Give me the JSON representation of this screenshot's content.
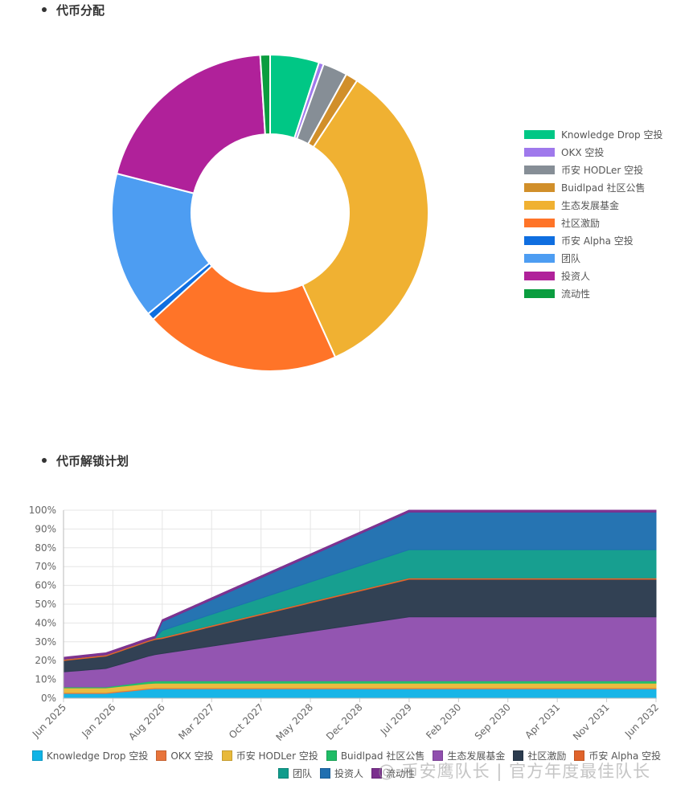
{
  "sections": {
    "distribution_title": "代币分配",
    "unlock_title": "代币解锁计划"
  },
  "watermark": "@ 币安鹰队长 | 官方年度最佳队长",
  "chart_data": [
    {
      "type": "pie",
      "variant": "doughnut",
      "legend_position": "right",
      "labels": [
        "Knowledge Drop 空投",
        "OKX 空投",
        "币安 HODLer 空投",
        "Buidlpad 社区公售",
        "生态发展基金",
        "社区激励",
        "币安 Alpha 空投",
        "团队",
        "投资人",
        "流动性"
      ],
      "values": [
        5,
        0.5,
        2.5,
        1.25,
        34,
        20,
        0.75,
        15,
        20,
        1
      ],
      "colors": [
        "#00c785",
        "#9f79ec",
        "#868e96",
        "#d18f2a",
        "#f0b132",
        "#ff7428",
        "#0f6ee0",
        "#4d9df2",
        "#b0219a",
        "#0a9d3f"
      ]
    },
    {
      "type": "area",
      "stacked": true,
      "legend_position": "bottom",
      "x": [
        "2025-06",
        "2025-07",
        "2025-08",
        "2025-09",
        "2025-10",
        "2025-11",
        "2025-12",
        "2026-01",
        "2026-02",
        "2026-03",
        "2026-04",
        "2026-05",
        "2026-06",
        "2026-07",
        "2026-08",
        "2029-07",
        "2032-06"
      ],
      "x_tick_labels": [
        "Jun 2025",
        "Jan 2026",
        "Aug 2026",
        "Mar 2027",
        "Oct 2027",
        "May 2028",
        "Dec 2028",
        "Jul 2029",
        "Feb 2030",
        "Sep 2030",
        "Apr 2031",
        "Nov 2031",
        "Jun 2032"
      ],
      "y_tick_labels": [
        "0%",
        "10%",
        "20%",
        "30%",
        "40%",
        "50%",
        "60%",
        "70%",
        "80%",
        "90%",
        "100%"
      ],
      "ylim": [
        0,
        100
      ],
      "grid": true,
      "series": [
        {
          "name": "Knowledge Drop 空投",
          "color": "#0fb3e6",
          "values": [
            2.5,
            2.5,
            2.5,
            2.5,
            2.5,
            2.5,
            2.5,
            2.9,
            3.3,
            3.6,
            4.0,
            4.4,
            4.8,
            5,
            5,
            5,
            5
          ]
        },
        {
          "name": "OKX 空投",
          "color": "#e8743b",
          "values": [
            0.5,
            0.5,
            0.5,
            0.5,
            0.5,
            0.5,
            0.5,
            0.5,
            0.5,
            0.5,
            0.5,
            0.5,
            0.5,
            0.5,
            0.5,
            0.5,
            0.5
          ]
        },
        {
          "name": "币安 HODLer 空投",
          "color": "#e8b93a",
          "values": [
            2.5,
            2.5,
            2.5,
            2.5,
            2.5,
            2.5,
            2.5,
            2.5,
            2.5,
            2.5,
            2.5,
            2.5,
            2.5,
            2.5,
            2.5,
            2.5,
            2.5
          ]
        },
        {
          "name": "Buidlpad 社区公售",
          "color": "#1fbc66",
          "values": [
            0.5,
            0.5,
            0.5,
            0.5,
            0.5,
            0.5,
            0.5,
            0.6,
            0.7,
            0.8,
            0.9,
            1.0,
            1.1,
            1.2,
            1.25,
            1.25,
            1.25
          ]
        },
        {
          "name": "生态发展基金",
          "color": "#904fae",
          "values": [
            8,
            8.3,
            8.6,
            8.9,
            9.2,
            9.5,
            9.8,
            10.4,
            11,
            11.6,
            12.2,
            12.8,
            13.4,
            14,
            14.5,
            34,
            34
          ]
        },
        {
          "name": "社区激励",
          "color": "#2b3b4e",
          "values": [
            6,
            6.1,
            6.2,
            6.3,
            6.4,
            6.5,
            6.6,
            6.8,
            7,
            7.2,
            7.4,
            7.6,
            7.8,
            8,
            8,
            20,
            20
          ]
        },
        {
          "name": "币安 Alpha 空投",
          "color": "#e0632b",
          "values": [
            0.75,
            0.75,
            0.75,
            0.75,
            0.75,
            0.75,
            0.75,
            0.75,
            0.75,
            0.75,
            0.75,
            0.75,
            0.75,
            0.75,
            0.75,
            0.75,
            0.75
          ]
        },
        {
          "name": "团队",
          "color": "#0f9c8c",
          "values": [
            0,
            0,
            0,
            0,
            0,
            0,
            0,
            0,
            0,
            0,
            0,
            0,
            0,
            0,
            3.5,
            15,
            15
          ]
        },
        {
          "name": "投资人",
          "color": "#1f6fb0",
          "values": [
            0,
            0,
            0,
            0,
            0,
            0,
            0,
            0,
            0,
            0,
            0,
            0,
            0,
            0,
            4.7,
            20,
            20
          ]
        },
        {
          "name": "流动性",
          "color": "#7b2f8e",
          "values": [
            1,
            1,
            1,
            1,
            1,
            1,
            1,
            1,
            1,
            1,
            1,
            1,
            1,
            1,
            1,
            1,
            1
          ]
        }
      ]
    }
  ]
}
